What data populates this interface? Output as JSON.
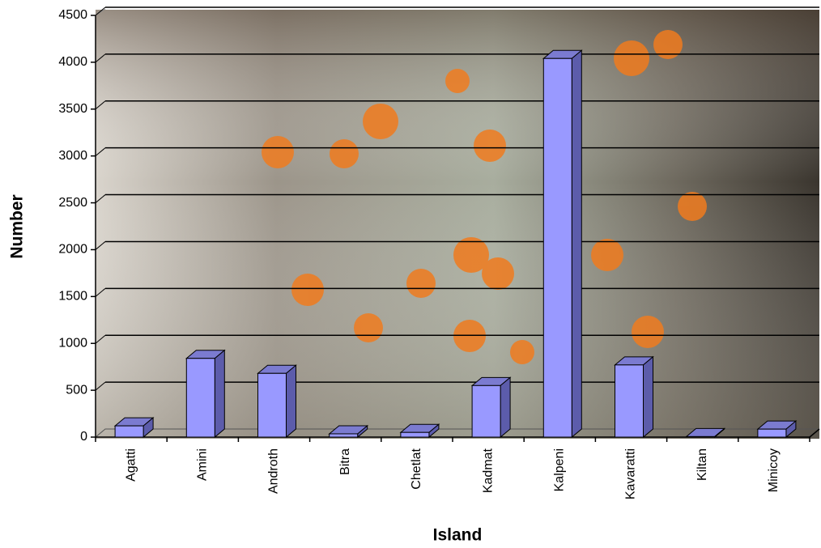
{
  "chart_data": {
    "type": "bar",
    "x_label": "Island",
    "y_label": "Number",
    "categories": [
      "Agatti",
      "Amini",
      "Androth",
      "Bitra",
      "Chetlat",
      "Kadmat",
      "Kalpeni",
      "Kavaratti",
      "Kiltan",
      "Minicoy"
    ],
    "values": [
      120,
      840,
      680,
      35,
      50,
      550,
      4040,
      770,
      5,
      85
    ],
    "color": "#9999ff",
    "ylim": [
      0,
      4500
    ],
    "yticks": [
      0,
      500,
      1000,
      1500,
      2000,
      2500,
      3000,
      3500,
      4000,
      4500
    ],
    "grid": true
  }
}
